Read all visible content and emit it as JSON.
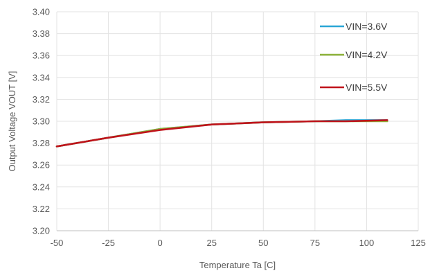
{
  "chart_data": {
    "type": "line",
    "xlabel": "Temperature Ta [C]",
    "ylabel": "Output Voltage VOUT [V]",
    "xlim": [
      -50,
      125
    ],
    "ylim": [
      3.2,
      3.4
    ],
    "x_ticks": [
      "-50",
      "-25",
      "0",
      "25",
      "50",
      "75",
      "100",
      "125"
    ],
    "y_ticks": [
      "3.20",
      "3.22",
      "3.24",
      "3.26",
      "3.28",
      "3.30",
      "3.32",
      "3.34",
      "3.36",
      "3.38",
      "3.40"
    ],
    "grid": true,
    "legend_position": "top-right",
    "series": [
      {
        "name": "VIN=3.6V",
        "color": "#2AA6D6",
        "x": [
          -50,
          -25,
          0,
          25,
          50,
          75,
          90,
          110
        ],
        "y": [
          3.277,
          3.285,
          3.293,
          3.297,
          3.299,
          3.3,
          3.301,
          3.301
        ]
      },
      {
        "name": "VIN=4.2V",
        "color": "#8DB33A",
        "x": [
          -50,
          -25,
          0,
          25,
          50,
          75,
          90,
          110
        ],
        "y": [
          3.277,
          3.285,
          3.293,
          3.297,
          3.299,
          3.3,
          3.3,
          3.3
        ]
      },
      {
        "name": "VIN=5.5V",
        "color": "#C0131B",
        "x": [
          -50,
          -25,
          0,
          25,
          50,
          75,
          90,
          110
        ],
        "y": [
          3.277,
          3.285,
          3.292,
          3.297,
          3.299,
          3.3,
          3.3,
          3.301
        ]
      }
    ]
  }
}
